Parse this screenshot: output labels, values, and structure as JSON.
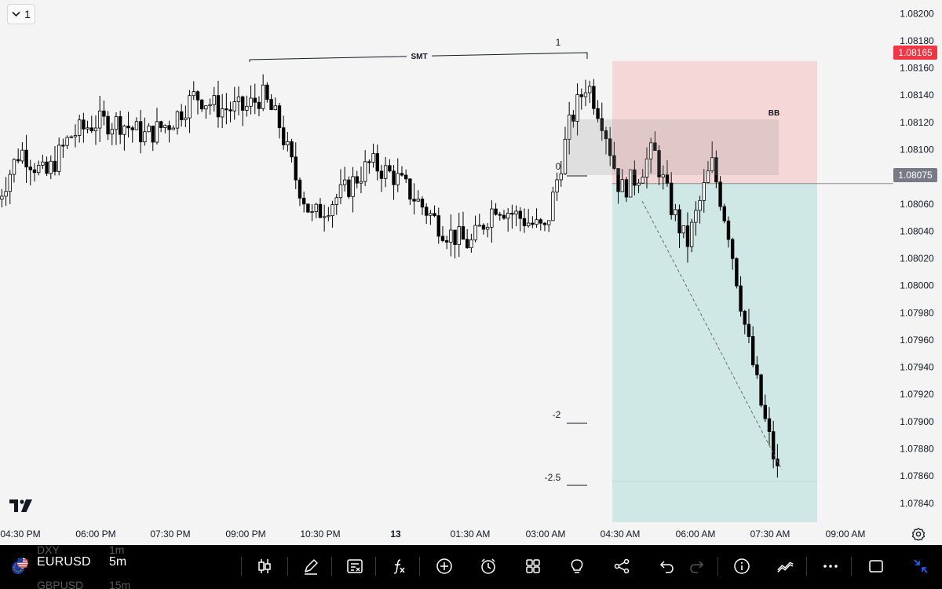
{
  "interval_button": {
    "label": "1"
  },
  "chart_data": {
    "type": "candlestick",
    "symbol": "EURUSD",
    "timeframe": "5m",
    "y_axis": {
      "ticks": [
        "1.08200",
        "1.08180",
        "1.08160",
        "1.08140",
        "1.08120",
        "1.08100",
        "1.08080",
        "1.08060",
        "1.08040",
        "1.08020",
        "1.08000",
        "1.07980",
        "1.07960",
        "1.07940",
        "1.07920",
        "1.07900",
        "1.07880",
        "1.07860",
        "1.07840"
      ],
      "range": [
        1.07826,
        1.0821
      ]
    },
    "x_axis": {
      "ticks": [
        "04:30 PM",
        "06:00 PM",
        "07:30 PM",
        "09:00 PM",
        "10:30 PM",
        "13",
        "01:30 AM",
        "03:00 AM",
        "04:30 AM",
        "06:00 AM",
        "07:30 AM",
        "09:00 AM"
      ]
    },
    "price_labels": [
      {
        "price": "1.08165",
        "color": "#f23645"
      },
      {
        "price": "1.08075",
        "color": "#787b86"
      }
    ],
    "trend_path": [
      [
        "04:00 PM",
        1.0806
      ],
      [
        "04:30 PM",
        1.081
      ],
      [
        "05:00 PM",
        1.0808
      ],
      [
        "05:30 PM",
        1.0811
      ],
      [
        "06:00 PM",
        1.0812
      ],
      [
        "06:30 PM",
        1.0812
      ],
      [
        "07:00 PM",
        1.0811
      ],
      [
        "07:30 PM",
        1.0812
      ],
      [
        "08:00 PM",
        1.0814
      ],
      [
        "08:30 PM",
        1.0813
      ],
      [
        "09:00 PM",
        1.0813
      ],
      [
        "09:20 PM",
        1.0814
      ],
      [
        "09:40 PM",
        1.0812
      ],
      [
        "10:00 PM",
        1.0808
      ],
      [
        "10:20 PM",
        1.0805
      ],
      [
        "10:40 PM",
        1.0806
      ],
      [
        "11:00 PM",
        1.0807
      ],
      [
        "11:30 PM",
        1.0809
      ],
      [
        "00:00 AM",
        1.0808
      ],
      [
        "00:30 AM",
        1.0806
      ],
      [
        "01:00 AM",
        1.0804
      ],
      [
        "01:30 AM",
        1.0803
      ],
      [
        "02:00 AM",
        1.0806
      ],
      [
        "02:30 AM",
        1.0805
      ],
      [
        "03:00 AM",
        1.0804
      ],
      [
        "03:30 AM",
        1.0812
      ],
      [
        "03:50 AM",
        1.0815
      ],
      [
        "04:10 AM",
        1.0812
      ],
      [
        "04:30 AM",
        1.0807
      ],
      [
        "04:50 AM",
        1.0808
      ],
      [
        "05:10 AM",
        1.081
      ],
      [
        "05:30 AM",
        1.0806
      ],
      [
        "05:50 AM",
        1.0803
      ],
      [
        "06:20 AM",
        1.0809
      ],
      [
        "06:40 AM",
        1.0804
      ],
      [
        "07:00 AM",
        1.0797
      ],
      [
        "07:20 AM",
        1.0791
      ],
      [
        "07:40 AM",
        1.0786
      ]
    ],
    "annotations": {
      "smt_label": "SMT",
      "bb_label": "BB",
      "fib_levels": [
        "1",
        "0",
        "-2",
        "-2.5"
      ]
    },
    "position": {
      "type": "short",
      "entry": 1.08075,
      "stop": 1.08165,
      "target": 1.07856
    },
    "grid": false
  },
  "bottom_bar": {
    "symbol": "EURUSD",
    "timeframe": "5m",
    "ghost_above": {
      "symbol": "DXY",
      "timeframe": "1m"
    },
    "ghost_below": {
      "symbol": "GBPUSD",
      "timeframe": "15m"
    },
    "tools": [
      "candles-icon",
      "draw-icon",
      "watchlist-icon",
      "indicators-icon",
      "add-icon",
      "alert-icon",
      "layouts-icon",
      "ideas-icon",
      "share-icon",
      "undo-icon",
      "redo-icon",
      "info-icon",
      "trading-icon",
      "more-icon",
      "fullscreen-icon",
      "collapse-icon"
    ]
  },
  "colors": {
    "up_candle": "#ffffff",
    "down_candle": "#000000",
    "stop_zone": "#f6d7d7",
    "target_zone": "#cfe8e5",
    "accent": "#2962ff"
  }
}
